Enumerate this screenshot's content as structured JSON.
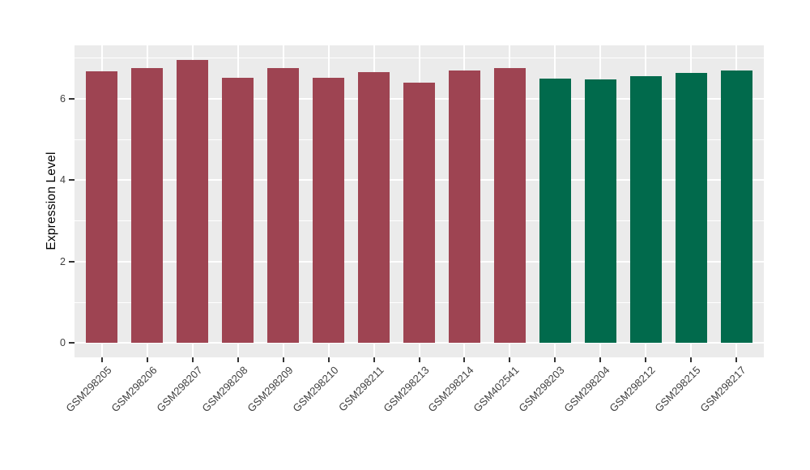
{
  "chart_data": {
    "type": "bar",
    "title": "",
    "xlabel": "",
    "ylabel": "Expression Level",
    "categories": [
      "GSM298205",
      "GSM298206",
      "GSM298207",
      "GSM298208",
      "GSM298209",
      "GSM298210",
      "GSM298211",
      "GSM298213",
      "GSM298214",
      "GSM402541",
      "GSM298203",
      "GSM298204",
      "GSM298212",
      "GSM298215",
      "GSM298217"
    ],
    "values": [
      6.68,
      6.76,
      6.95,
      6.52,
      6.75,
      6.52,
      6.66,
      6.4,
      6.69,
      6.75,
      6.5,
      6.48,
      6.56,
      6.64,
      6.7
    ],
    "bar_group": [
      0,
      0,
      0,
      0,
      0,
      0,
      0,
      0,
      0,
      0,
      1,
      1,
      1,
      1,
      1
    ],
    "group_colors": [
      "#9E4452",
      "#016A4C"
    ],
    "y_ticks": [
      0,
      2,
      4,
      6
    ],
    "y_minor_ticks": [
      1,
      3,
      5,
      7
    ],
    "y_range": [
      -0.35,
      7.31
    ],
    "bar_width_fraction": 0.7,
    "x_tick_angle": -45,
    "legend": false,
    "grid": true,
    "panel_background": "#EBEBEB",
    "grid_color": "#FFFFFF",
    "tick_mark_color": "#333333",
    "axis_text_color": "#404040",
    "axis_title_color": "#000000"
  }
}
